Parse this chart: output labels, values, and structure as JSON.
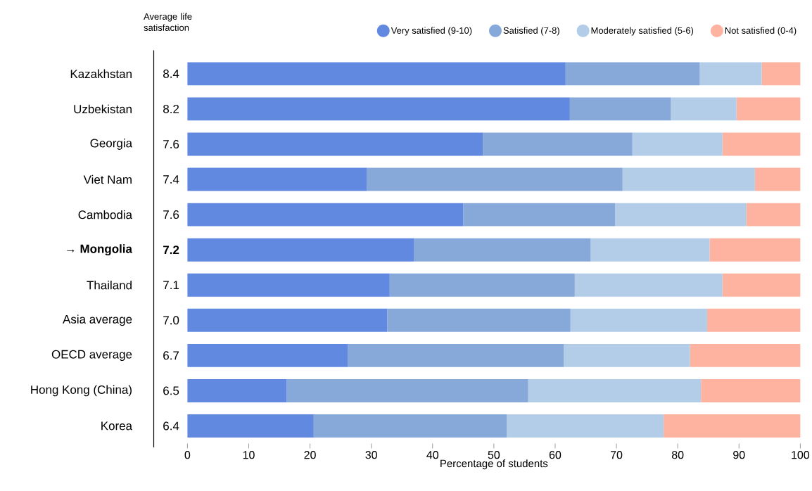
{
  "chart_data": {
    "type": "bar",
    "orientation": "horizontal",
    "stacked": true,
    "categories": [
      "Kazakhstan",
      "Uzbekistan",
      "Georgia",
      "Viet Nam",
      "Cambodia",
      "→ **Mongolia**",
      "Thailand",
      "Asia average",
      "OECD average",
      "Hong Kong (China)",
      "Korea"
    ],
    "y2_categories": [
      "8.4",
      "8.2",
      "7.6",
      "7.4",
      "7.6",
      "**7.2**",
      "7.1",
      "7.0",
      "6.7",
      "6.5",
      "6.4"
    ],
    "y2label": "Average life satisfaction",
    "xlabel": "Percentage of students",
    "xlim": [
      0,
      100
    ],
    "xticks": [
      0,
      10,
      20,
      30,
      40,
      50,
      60,
      70,
      80,
      90,
      100
    ],
    "legend": "top",
    "grid": false,
    "series": [
      {
        "name": "Very satisfied (9-10)",
        "color": "#6289e0",
        "values": [
          61.7,
          62.4,
          48.2,
          29.3,
          45.0,
          37.0,
          33.0,
          32.6,
          26.2,
          16.2,
          20.6
        ]
      },
      {
        "name": "Satisfied (7-8)",
        "color": "#87a9da",
        "values": [
          21.9,
          16.5,
          24.4,
          41.7,
          24.8,
          28.8,
          30.2,
          29.9,
          35.2,
          39.4,
          31.5
        ]
      },
      {
        "name": "Moderately satisfied (5-6)",
        "color": "#b3cde9",
        "values": [
          10.1,
          10.7,
          14.7,
          21.6,
          21.4,
          19.4,
          24.1,
          22.3,
          20.6,
          28.2,
          25.6
        ]
      },
      {
        "name": "Not satisfied (0-4)",
        "color": "#feb3a1",
        "values": [
          6.3,
          10.4,
          12.7,
          7.4,
          8.8,
          14.8,
          12.7,
          15.2,
          18.0,
          16.2,
          22.3
        ]
      }
    ]
  }
}
